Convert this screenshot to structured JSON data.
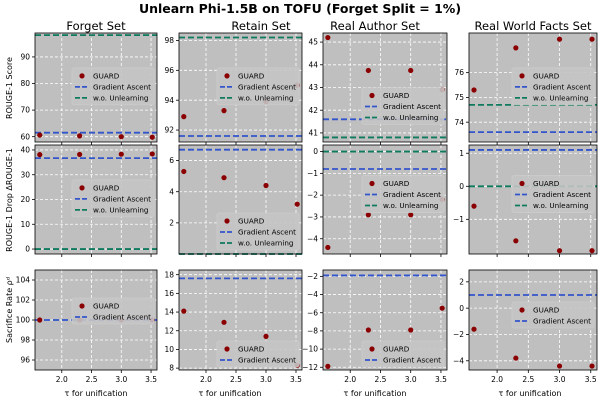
{
  "chart_data": {
    "type": "scatter",
    "title": "Unlearn Phi-1.5B on TOFU (Forget Split = 1%)",
    "columns": [
      "Forget Set",
      "Retain Set",
      "Real Author Set",
      "Real World Facts Set"
    ],
    "rows": [
      {
        "ylabel": "ROUGE-1 Score"
      },
      {
        "ylabel": "ROUGE-1 Drop ΔROUGE-1"
      },
      {
        "ylabel": "Sacrifice Rate ρᵈ"
      }
    ],
    "xlabel": "τ for unification",
    "xlim": [
      1.55,
      3.6
    ],
    "xticks": [
      2.0,
      2.5,
      3.0,
      3.5
    ],
    "xticklabels": [
      "2.0",
      "2.5",
      "3.0",
      "3.5"
    ],
    "legend_labels": {
      "guard": "GUARD",
      "ga": "Gradient Ascent",
      "wo": "w.o. Unlearning"
    },
    "colors": {
      "guard": "#8b0000",
      "ga": "#3355cc",
      "wo": "#0e7a5e",
      "bg": "#bfbfbf",
      "grid": "#ffffff"
    },
    "panels": [
      {
        "row": 0,
        "col": 0,
        "ylim": [
          58,
          99
        ],
        "yticks": [
          60,
          70,
          80,
          90
        ],
        "yticklabels": [
          "60",
          "70",
          "80",
          "90"
        ],
        "guard_x": [
          1.63,
          2.3,
          3.0,
          3.52
        ],
        "guard_y": [
          60.6,
          60.3,
          60.0,
          59.8
        ],
        "ga": 61.5,
        "wo": 98.2,
        "legend": {
          "pos": "mid",
          "wo": true
        }
      },
      {
        "row": 0,
        "col": 1,
        "ylim": [
          91.2,
          98.5
        ],
        "yticks": [
          92,
          94,
          96,
          98
        ],
        "yticklabels": [
          "92",
          "94",
          "96",
          "98"
        ],
        "guard_x": [
          1.63,
          2.3,
          3.0,
          3.52
        ],
        "guard_y": [
          92.9,
          93.3,
          93.9,
          95.0
        ],
        "ga": 91.6,
        "wo": 98.2,
        "legend": {
          "pos": "mid",
          "wo": true
        }
      },
      {
        "row": 0,
        "col": 2,
        "ylim": [
          40.6,
          45.4
        ],
        "yticks": [
          41,
          42,
          43,
          44,
          45
        ],
        "yticklabels": [
          "41",
          "42",
          "43",
          "44",
          "45"
        ],
        "guard_x": [
          1.63,
          2.3,
          3.0,
          3.52
        ],
        "guard_y": [
          45.2,
          43.75,
          43.75,
          42.9
        ],
        "ga": 41.6,
        "wo": 40.8,
        "legend": {
          "pos": "lowmid",
          "wo": true
        }
      },
      {
        "row": 0,
        "col": 3,
        "ylim": [
          73.2,
          77.6
        ],
        "yticks": [
          74,
          75,
          76
        ],
        "yticklabels": [
          "74",
          "75",
          "76"
        ],
        "guard_x": [
          1.63,
          2.3,
          3.0,
          3.52
        ],
        "guard_y": [
          75.3,
          77.0,
          77.35,
          77.35
        ],
        "ga": 73.6,
        "wo": 74.7,
        "legend": {
          "pos": "mid",
          "wo": true
        }
      },
      {
        "row": 1,
        "col": 0,
        "ylim": [
          -2,
          42
        ],
        "yticks": [
          0,
          10,
          20,
          30,
          40
        ],
        "yticklabels": [
          "0",
          "10",
          "20",
          "30",
          "40"
        ],
        "guard_x": [
          1.63,
          2.3,
          3.0,
          3.52
        ],
        "guard_y": [
          38.1,
          38.2,
          38.3,
          38.4
        ],
        "ga": 36.7,
        "wo": 0,
        "legend": {
          "pos": "mid",
          "wo": true
        }
      },
      {
        "row": 1,
        "col": 1,
        "ylim": [
          0,
          7
        ],
        "yticks": [
          2,
          4,
          6
        ],
        "yticklabels": [
          "2",
          "4",
          "6"
        ],
        "guard_x": [
          1.63,
          2.3,
          3.0,
          3.52
        ],
        "guard_y": [
          5.3,
          4.9,
          4.4,
          3.2
        ],
        "ga": 6.7,
        "wo": 0,
        "legend": {
          "pos": "low",
          "wo": true
        }
      },
      {
        "row": 1,
        "col": 2,
        "ylim": [
          -4.7,
          0.3
        ],
        "yticks": [
          -4,
          -3,
          -2,
          -1,
          0
        ],
        "yticklabels": [
          "−4",
          "−3",
          "−2",
          "−1",
          "0"
        ],
        "guard_x": [
          1.63,
          2.3,
          3.0,
          3.52
        ],
        "guard_y": [
          -4.4,
          -2.9,
          -2.9,
          -2.2
        ],
        "ga": -0.8,
        "wo": 0,
        "legend": {
          "pos": "top",
          "wo": true
        }
      },
      {
        "row": 1,
        "col": 3,
        "ylim": [
          -2.05,
          1.25
        ],
        "yticks": [
          -1,
          0,
          1
        ],
        "yticklabels": [
          "−1",
          "0",
          "1"
        ],
        "guard_x": [
          1.63,
          2.3,
          3.0,
          3.52
        ],
        "guard_y": [
          -0.6,
          -1.65,
          -1.95,
          -1.95
        ],
        "ga": 1.1,
        "wo": 0,
        "legend": {
          "pos": "top",
          "wo": true
        }
      },
      {
        "row": 2,
        "col": 0,
        "ylim": [
          95,
          105
        ],
        "yticks": [
          96,
          98,
          100,
          102,
          104
        ],
        "yticklabels": [
          "96",
          "98",
          "100",
          "102",
          "104"
        ],
        "guard_x": [
          1.63,
          2.3,
          3.0,
          3.52
        ],
        "guard_y": [
          100,
          100,
          100,
          100
        ],
        "ga": 100,
        "legend": {
          "pos": "top",
          "wo": false
        }
      },
      {
        "row": 2,
        "col": 1,
        "ylim": [
          7.8,
          18.5
        ],
        "yticks": [
          8,
          10,
          12,
          14,
          16,
          18
        ],
        "yticklabels": [
          "8",
          "10",
          "12",
          "14",
          "16",
          "18"
        ],
        "guard_x": [
          1.63,
          2.3,
          3.0,
          3.52
        ],
        "guard_y": [
          14.1,
          12.9,
          11.4,
          8.3
        ],
        "ga": 17.6,
        "legend": {
          "pos": "bottom",
          "wo": false
        }
      },
      {
        "row": 2,
        "col": 2,
        "ylim": [
          -12.3,
          -1.3
        ],
        "yticks": [
          -12,
          -10,
          -8,
          -6,
          -4,
          -2
        ],
        "yticklabels": [
          "−12",
          "−10",
          "−8",
          "−6",
          "−4",
          "−2"
        ],
        "guard_x": [
          1.63,
          2.3,
          3.0,
          3.52
        ],
        "guard_y": [
          -11.9,
          -7.9,
          -7.9,
          -5.5
        ],
        "ga": -1.9,
        "legend": {
          "pos": "bottom",
          "wo": false
        }
      },
      {
        "row": 2,
        "col": 3,
        "ylim": [
          -4.7,
          2.9
        ],
        "yticks": [
          -4,
          -2,
          0,
          2
        ],
        "yticklabels": [
          "−4",
          "−2",
          "0",
          "2"
        ],
        "guard_x": [
          1.63,
          2.3,
          3.0,
          3.52
        ],
        "guard_y": [
          -1.6,
          -3.8,
          -4.4,
          -4.4
        ],
        "ga": 1.0,
        "legend": {
          "pos": "mid",
          "wo": false
        }
      }
    ]
  }
}
